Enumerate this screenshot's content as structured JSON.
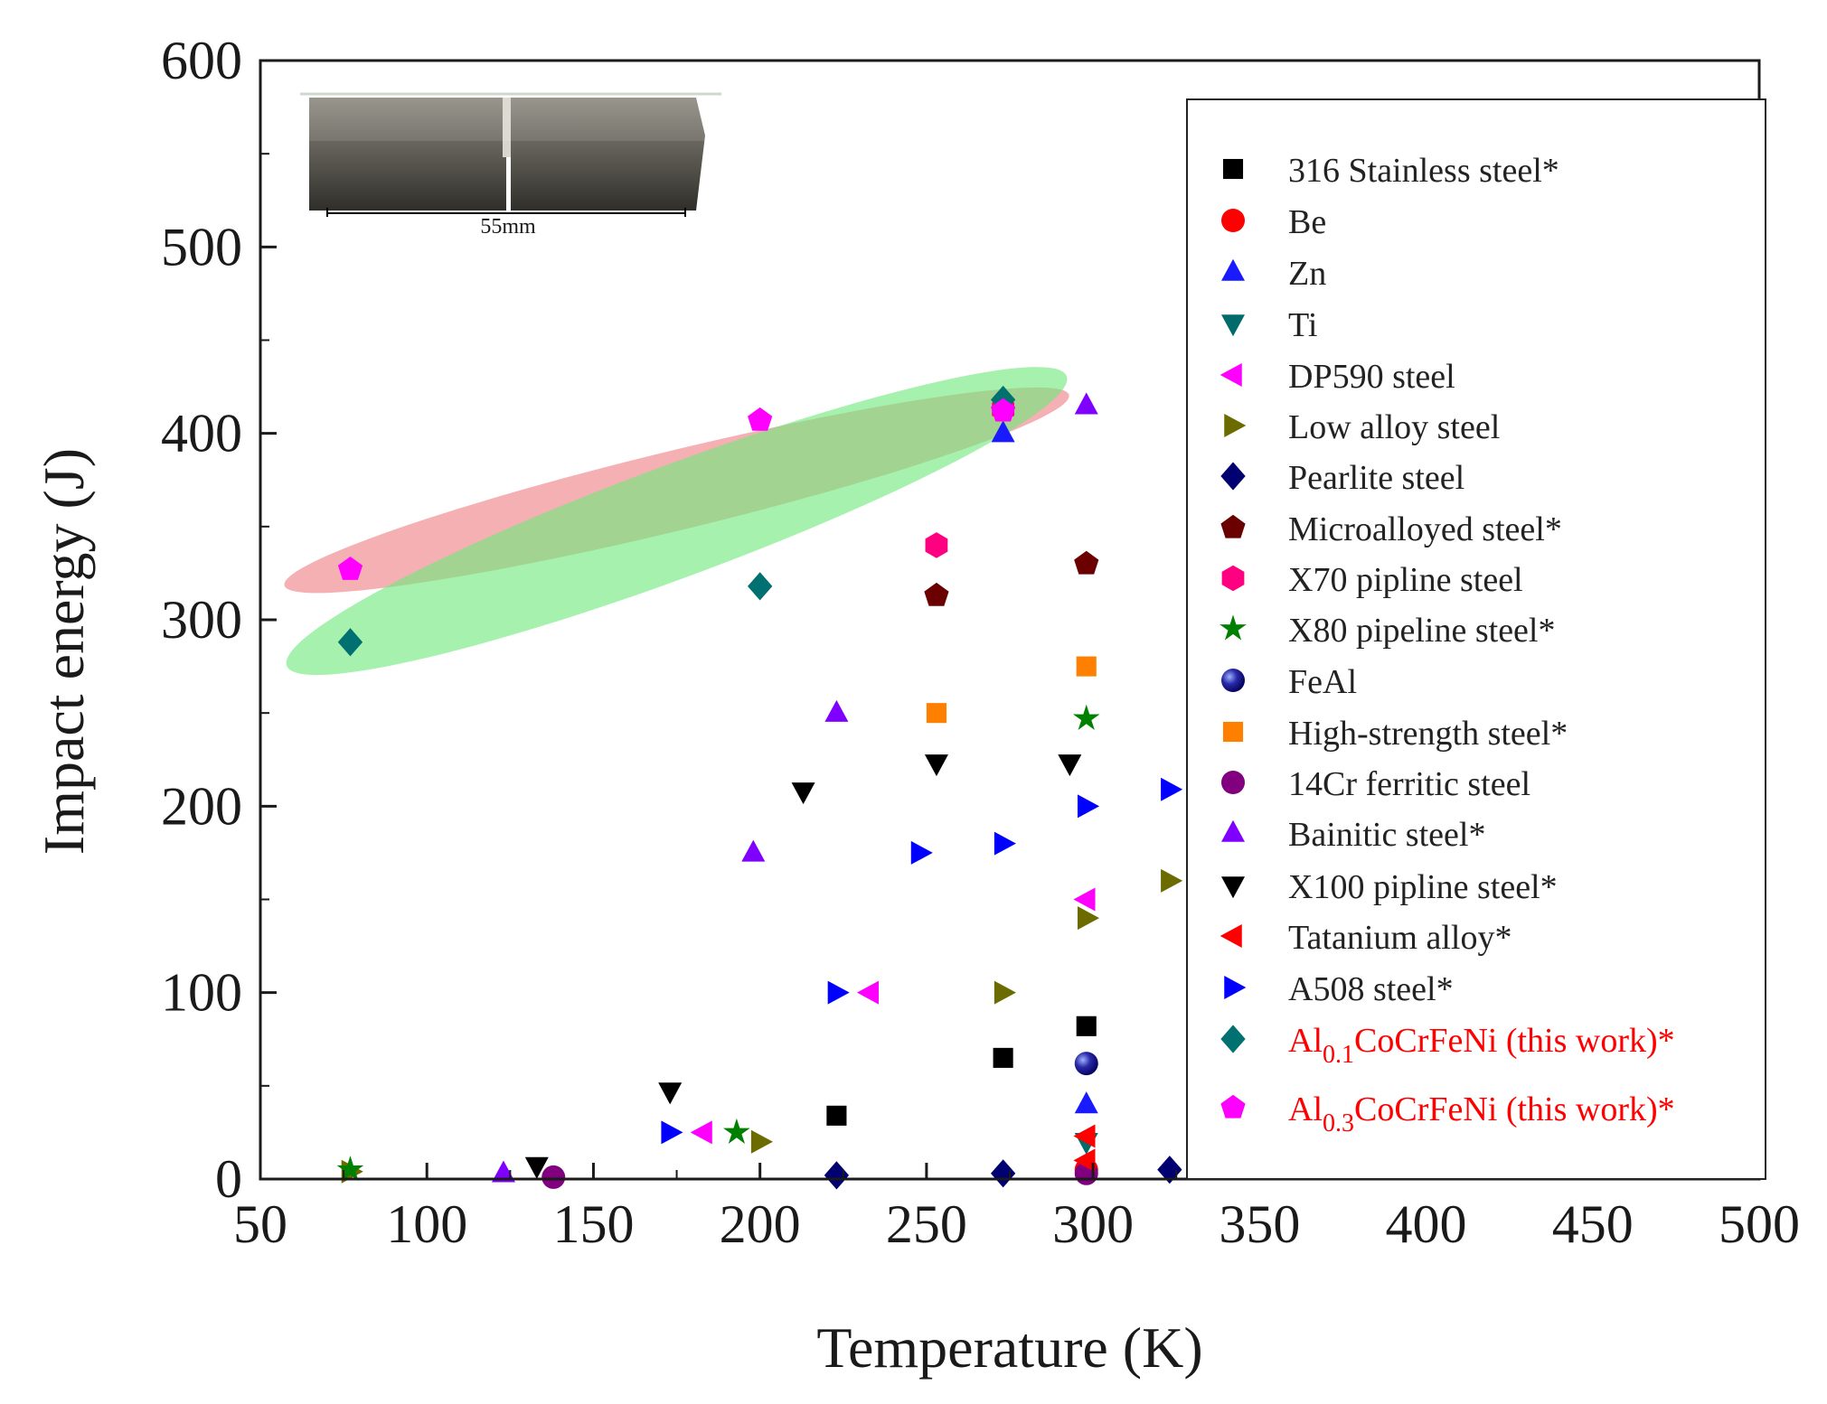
{
  "chart_data": {
    "type": "scatter",
    "title": "",
    "xlabel": "Temperature (K)",
    "ylabel": "Impact energy (J)",
    "xlim": [
      50,
      500
    ],
    "ylim": [
      0,
      600
    ],
    "x_ticks": [
      50,
      100,
      150,
      200,
      250,
      300,
      350,
      400,
      450,
      500
    ],
    "y_ticks": [
      0,
      100,
      200,
      300,
      400,
      500,
      600
    ],
    "legend_position": "right",
    "inset": {
      "caption": "55mm",
      "description": "Charpy specimen"
    },
    "series": [
      {
        "name": "316 Stainless steel*",
        "marker": "square",
        "color": "#000000",
        "points": [
          [
            223,
            34
          ],
          [
            273,
            65
          ],
          [
            298,
            82
          ]
        ]
      },
      {
        "name": "Be",
        "marker": "circle",
        "color": "#ff0000",
        "points": [
          [
            298,
            5
          ]
        ]
      },
      {
        "name": "Zn",
        "marker": "triangle-up",
        "color": "#1a1aff",
        "points": [
          [
            273,
            400
          ],
          [
            298,
            40
          ]
        ]
      },
      {
        "name": "Ti",
        "marker": "triangle-down",
        "color": "#006b6b",
        "points": [
          [
            298,
            20
          ]
        ]
      },
      {
        "name": "DP590 steel",
        "marker": "triangle-left",
        "color": "#ff00ff",
        "points": [
          [
            233,
            100
          ],
          [
            183,
            25
          ],
          [
            298,
            150
          ]
        ]
      },
      {
        "name": "Low alloy steel",
        "marker": "triangle-right",
        "color": "#6b6b00",
        "points": [
          [
            77,
            4
          ],
          [
            200,
            20
          ],
          [
            273,
            100
          ],
          [
            298,
            140
          ],
          [
            323,
            160
          ]
        ]
      },
      {
        "name": "Pearlite steel",
        "marker": "diamond",
        "color": "#000070",
        "points": [
          [
            223,
            2
          ],
          [
            273,
            3
          ],
          [
            323,
            5
          ]
        ]
      },
      {
        "name": "Microalloyed steel*",
        "marker": "pentagon",
        "color": "#6b0000",
        "points": [
          [
            253,
            313
          ],
          [
            298,
            330
          ]
        ]
      },
      {
        "name": "X70 pipline steel",
        "marker": "hexagon",
        "color": "#ff0080",
        "points": [
          [
            253,
            340
          ],
          [
            273,
            413
          ]
        ]
      },
      {
        "name": "X80 pipeline steel*",
        "marker": "star",
        "color": "#008000",
        "points": [
          [
            77,
            5
          ],
          [
            193,
            25
          ],
          [
            298,
            247
          ]
        ]
      },
      {
        "name": "FeAl",
        "marker": "sphere",
        "color": "#000090",
        "points": [
          [
            298,
            62
          ]
        ]
      },
      {
        "name": "High-strength steel*",
        "marker": "square",
        "color": "#ff8000",
        "points": [
          [
            253,
            250
          ],
          [
            298,
            275
          ]
        ]
      },
      {
        "name": "14Cr ferritic steel",
        "marker": "circle",
        "color": "#800080",
        "points": [
          [
            138,
            1
          ],
          [
            298,
            3
          ]
        ]
      },
      {
        "name": "Bainitic steel*",
        "marker": "triangle-up",
        "color": "#8000ff",
        "points": [
          [
            123,
            3
          ],
          [
            198,
            175
          ],
          [
            223,
            250
          ],
          [
            298,
            415
          ]
        ]
      },
      {
        "name": "X100 pipline steel*",
        "marker": "triangle-down",
        "color": "#000000",
        "points": [
          [
            133,
            7
          ],
          [
            173,
            47
          ],
          [
            213,
            208
          ],
          [
            253,
            223
          ],
          [
            293,
            223
          ]
        ]
      },
      {
        "name": "Tatanium alloy*",
        "marker": "triangle-left",
        "color": "#ff0000",
        "points": [
          [
            298,
            23
          ],
          [
            298,
            10
          ]
        ]
      },
      {
        "name": "A508 steel*",
        "marker": "triangle-right",
        "color": "#0000ff",
        "points": [
          [
            173,
            25
          ],
          [
            223,
            100
          ],
          [
            248,
            175
          ],
          [
            273,
            180
          ],
          [
            298,
            200
          ],
          [
            323,
            209
          ]
        ]
      },
      {
        "name": "Al0.1CoCrFeNi (this work)*",
        "marker": "diamond",
        "color": "#007070",
        "label_color": "#ff0000",
        "points": [
          [
            77,
            288
          ],
          [
            200,
            318
          ],
          [
            273,
            418
          ]
        ]
      },
      {
        "name": "Al0.3CoCrFeNi (this work)*",
        "marker": "pentagon",
        "color": "#ff00ff",
        "label_color": "#ff0000",
        "points": [
          [
            77,
            327
          ],
          [
            200,
            407
          ],
          [
            273,
            412
          ]
        ]
      }
    ],
    "legend_labels": [
      {
        "text": "316 Stainless steel*"
      },
      {
        "text": "Be"
      },
      {
        "text": "Zn"
      },
      {
        "text": "Ti"
      },
      {
        "text": "DP590 steel"
      },
      {
        "text": "Low alloy steel"
      },
      {
        "text": "Pearlite steel"
      },
      {
        "text": "Microalloyed steel*"
      },
      {
        "text": "X70 pipline steel"
      },
      {
        "text": "X80 pipeline steel*"
      },
      {
        "text": "FeAl"
      },
      {
        "text": "High-strength steel*"
      },
      {
        "text": "14Cr ferritic steel"
      },
      {
        "text": "Bainitic steel*"
      },
      {
        "text": "X100 pipline steel*"
      },
      {
        "text": "Tatanium alloy*"
      },
      {
        "text": "A508 steel*"
      },
      {
        "pre": "Al",
        "sub": "0.1",
        "post": "CoCrFeNi (this work)*"
      },
      {
        "pre": "Al",
        "sub": "0.3",
        "post": "CoCrFeNi (this work)*"
      }
    ],
    "highlight_regions": [
      {
        "series": "Al0.3CoCrFeNi (this work)*",
        "color": "#ef7f86"
      },
      {
        "series": "Al0.1CoCrFeNi (this work)*",
        "color": "#6fe87a"
      }
    ]
  }
}
